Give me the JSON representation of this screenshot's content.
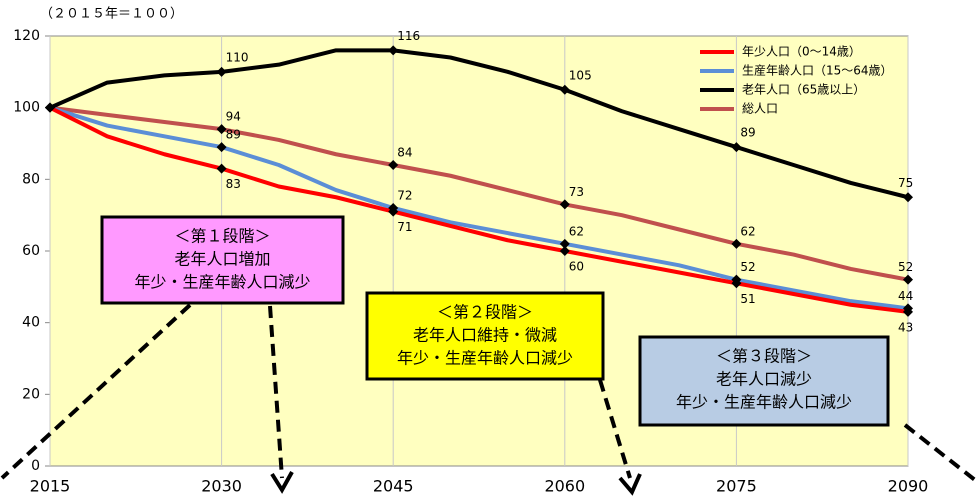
{
  "chart_data": {
    "type": "line",
    "y_unit": "（２０１５年＝１００）",
    "x": [
      2015,
      2020,
      2025,
      2030,
      2035,
      2040,
      2045,
      2050,
      2055,
      2060,
      2065,
      2070,
      2075,
      2080,
      2085,
      2090
    ],
    "xlim": [
      2015,
      2090
    ],
    "xticks": [
      2015,
      2030,
      2045,
      2060,
      2075,
      2090
    ],
    "ylim": [
      0,
      120
    ],
    "yticks": [
      0,
      20,
      40,
      60,
      80,
      100,
      120
    ],
    "grid": "x",
    "legend": "upper right",
    "series": [
      {
        "name": "年少人口（0～14歳）",
        "color": "#ff0000",
        "values": [
          100,
          92,
          87,
          83,
          78,
          75,
          71,
          67,
          63,
          60,
          57,
          54,
          51,
          48,
          45,
          43
        ]
      },
      {
        "name": "生産年齢人口（15～64歳）",
        "color": "#5b8ed6",
        "values": [
          100,
          95,
          92,
          89,
          84,
          77,
          72,
          68,
          65,
          62,
          59,
          56,
          52,
          49,
          46,
          44
        ]
      },
      {
        "name": "老年人口（65歳以上）",
        "color": "#000000",
        "values": [
          100,
          107,
          109,
          110,
          112,
          116,
          116,
          114,
          110,
          105,
          99,
          94,
          89,
          84,
          79,
          75
        ]
      },
      {
        "name": "総人口",
        "color": "#c0504d",
        "values": [
          100,
          98,
          96,
          94,
          91,
          87,
          84,
          81,
          77,
          73,
          70,
          66,
          62,
          59,
          55,
          52
        ]
      }
    ],
    "annotations": [
      {
        "lines": [
          "＜第１段階＞",
          "老年人口増加",
          "年少・生産年齢人口減少"
        ],
        "color": "#ff99ff"
      },
      {
        "lines": [
          "＜第２段階＞",
          "老年人口維持・微減",
          "年少・生産年齢人口減少"
        ],
        "color": "#ffff00"
      },
      {
        "lines": [
          "＜第３段階＞",
          "老年人口減少",
          "年少・生産年齢人口減少"
        ],
        "color": "#b8cce4"
      }
    ]
  }
}
